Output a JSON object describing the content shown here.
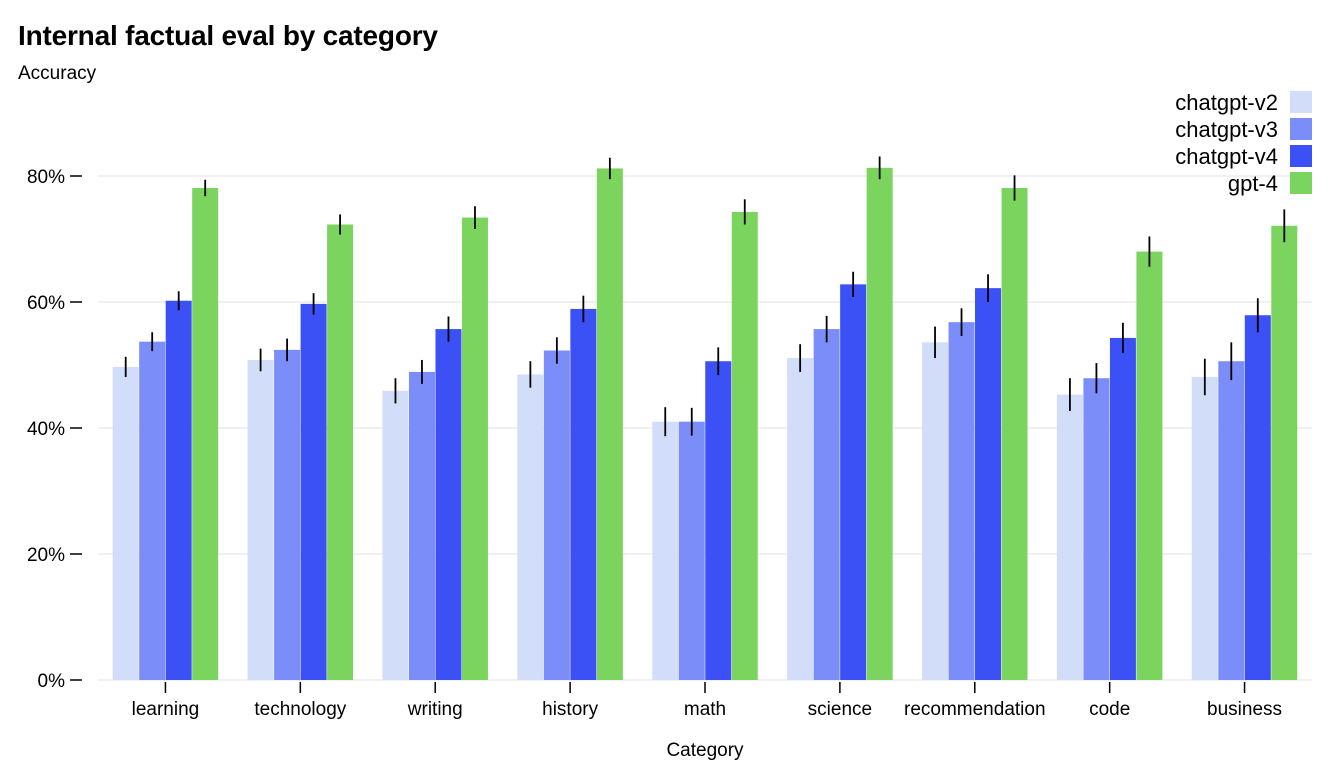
{
  "chart_data": {
    "type": "bar",
    "title": "Internal factual eval by category",
    "ylabel": "Accuracy",
    "xlabel": "Category",
    "ylim": [
      0,
      90
    ],
    "yticks": [
      0,
      20,
      40,
      60,
      80
    ],
    "ytick_format": "percent",
    "grid": true,
    "legend_position": "top-right",
    "categories": [
      "learning",
      "technology",
      "writing",
      "history",
      "math",
      "science",
      "recommendation",
      "code",
      "business"
    ],
    "series": [
      {
        "name": "chatgpt-v2",
        "color": "#d2ddfa",
        "values": [
          49.7,
          50.8,
          45.9,
          48.5,
          41.0,
          51.1,
          53.6,
          45.3,
          48.1
        ],
        "errors": [
          1.6,
          1.8,
          2.0,
          2.1,
          2.3,
          2.2,
          2.5,
          2.6,
          2.9
        ]
      },
      {
        "name": "chatgpt-v3",
        "color": "#7b8df8",
        "values": [
          53.7,
          52.4,
          48.9,
          52.3,
          41.0,
          55.7,
          56.8,
          47.9,
          50.6
        ],
        "errors": [
          1.5,
          1.8,
          1.9,
          2.1,
          2.2,
          2.1,
          2.2,
          2.4,
          3.0
        ]
      },
      {
        "name": "chatgpt-v4",
        "color": "#3b50f5",
        "values": [
          60.2,
          59.7,
          55.7,
          58.9,
          50.6,
          62.8,
          62.2,
          54.3,
          57.9
        ],
        "errors": [
          1.5,
          1.7,
          2.0,
          2.1,
          2.2,
          2.0,
          2.2,
          2.4,
          2.7
        ]
      },
      {
        "name": "gpt-4",
        "color": "#7bd45e",
        "values": [
          78.1,
          72.3,
          73.4,
          81.2,
          74.3,
          81.3,
          78.1,
          68.0,
          72.1
        ],
        "errors": [
          1.3,
          1.6,
          1.8,
          1.7,
          2.0,
          1.8,
          2.0,
          2.4,
          2.6
        ]
      }
    ]
  }
}
